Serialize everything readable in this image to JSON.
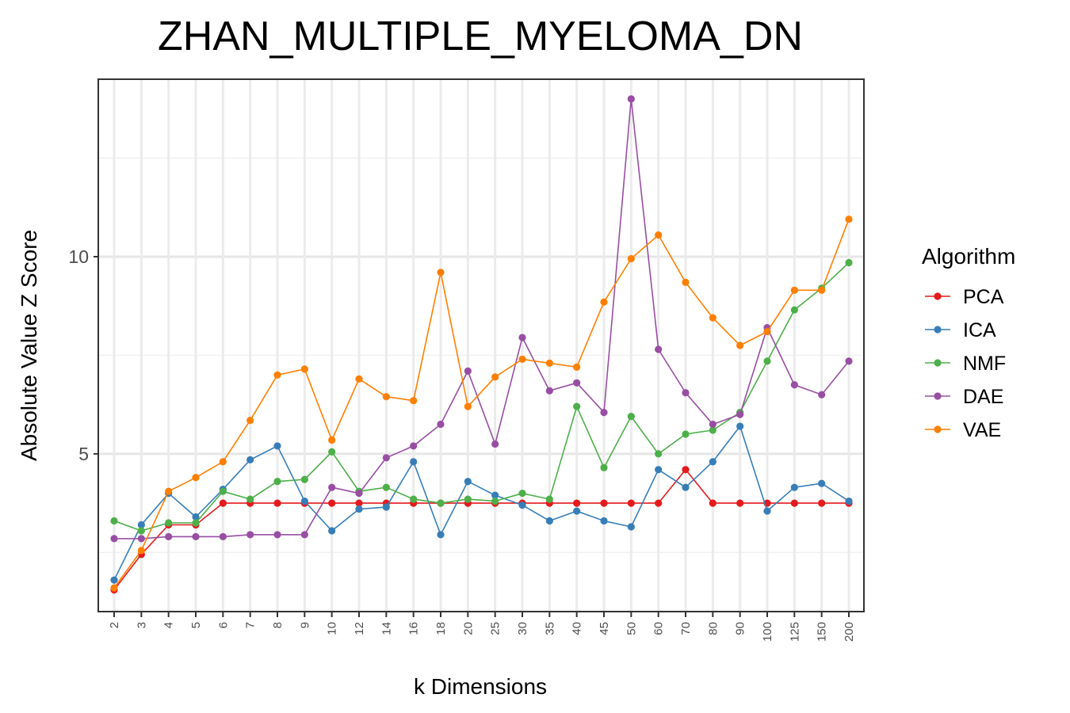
{
  "chart_data": {
    "type": "line",
    "title": "ZHAN_MULTIPLE_MYELOMA_DN",
    "xlabel": "k Dimensions",
    "ylabel": "Absolute Value Z Score",
    "categories": [
      "2",
      "3",
      "4",
      "5",
      "6",
      "7",
      "8",
      "9",
      "10",
      "12",
      "14",
      "16",
      "18",
      "20",
      "25",
      "30",
      "35",
      "40",
      "45",
      "50",
      "60",
      "70",
      "80",
      "90",
      "100",
      "125",
      "150",
      "200"
    ],
    "y_ticks": [
      5,
      10
    ],
    "ylim": [
      1,
      14.5
    ],
    "grid": true,
    "legend_title": "Algorithm",
    "legend_position": "right",
    "series": [
      {
        "name": "PCA",
        "color": "#e41a1c",
        "values": [
          1.55,
          2.45,
          3.2,
          3.2,
          3.75,
          3.75,
          3.75,
          3.75,
          3.75,
          3.75,
          3.75,
          3.75,
          3.75,
          3.75,
          3.75,
          3.75,
          3.75,
          3.75,
          3.75,
          3.75,
          3.75,
          4.6,
          3.75,
          3.75,
          3.75,
          3.75,
          3.75,
          3.75
        ]
      },
      {
        "name": "ICA",
        "color": "#377eb8",
        "values": [
          1.8,
          3.2,
          4.0,
          3.4,
          4.1,
          4.85,
          5.2,
          3.8,
          3.05,
          3.6,
          3.65,
          4.8,
          2.95,
          4.3,
          3.95,
          3.7,
          3.3,
          3.55,
          3.3,
          3.15,
          4.6,
          4.15,
          4.8,
          5.7,
          3.55,
          4.15,
          4.25,
          3.8
        ]
      },
      {
        "name": "NMF",
        "color": "#4daf4a",
        "values": [
          3.3,
          3.05,
          3.25,
          3.25,
          4.05,
          3.85,
          4.3,
          4.35,
          5.05,
          4.05,
          4.15,
          3.85,
          3.75,
          3.85,
          3.8,
          4.0,
          3.85,
          6.2,
          4.65,
          5.95,
          5.0,
          5.5,
          5.6,
          6.05,
          7.35,
          8.65,
          9.2,
          9.85
        ]
      },
      {
        "name": "DAE",
        "color": "#984ea3",
        "values": [
          2.85,
          2.85,
          2.9,
          2.9,
          2.9,
          2.95,
          2.95,
          2.95,
          4.15,
          4.0,
          4.9,
          5.2,
          5.75,
          7.1,
          5.25,
          7.95,
          6.6,
          6.8,
          6.05,
          14.0,
          7.65,
          6.55,
          5.75,
          6.0,
          8.2,
          6.75,
          6.5,
          7.35
        ]
      },
      {
        "name": "VAE",
        "color": "#ff7f00",
        "values": [
          1.6,
          2.55,
          4.05,
          4.4,
          4.8,
          5.85,
          7.0,
          7.15,
          5.35,
          6.9,
          6.45,
          6.35,
          9.6,
          6.2,
          6.95,
          7.4,
          7.3,
          7.2,
          8.85,
          9.95,
          10.55,
          9.35,
          8.45,
          7.75,
          8.1,
          9.15,
          9.15,
          10.95
        ]
      }
    ]
  }
}
